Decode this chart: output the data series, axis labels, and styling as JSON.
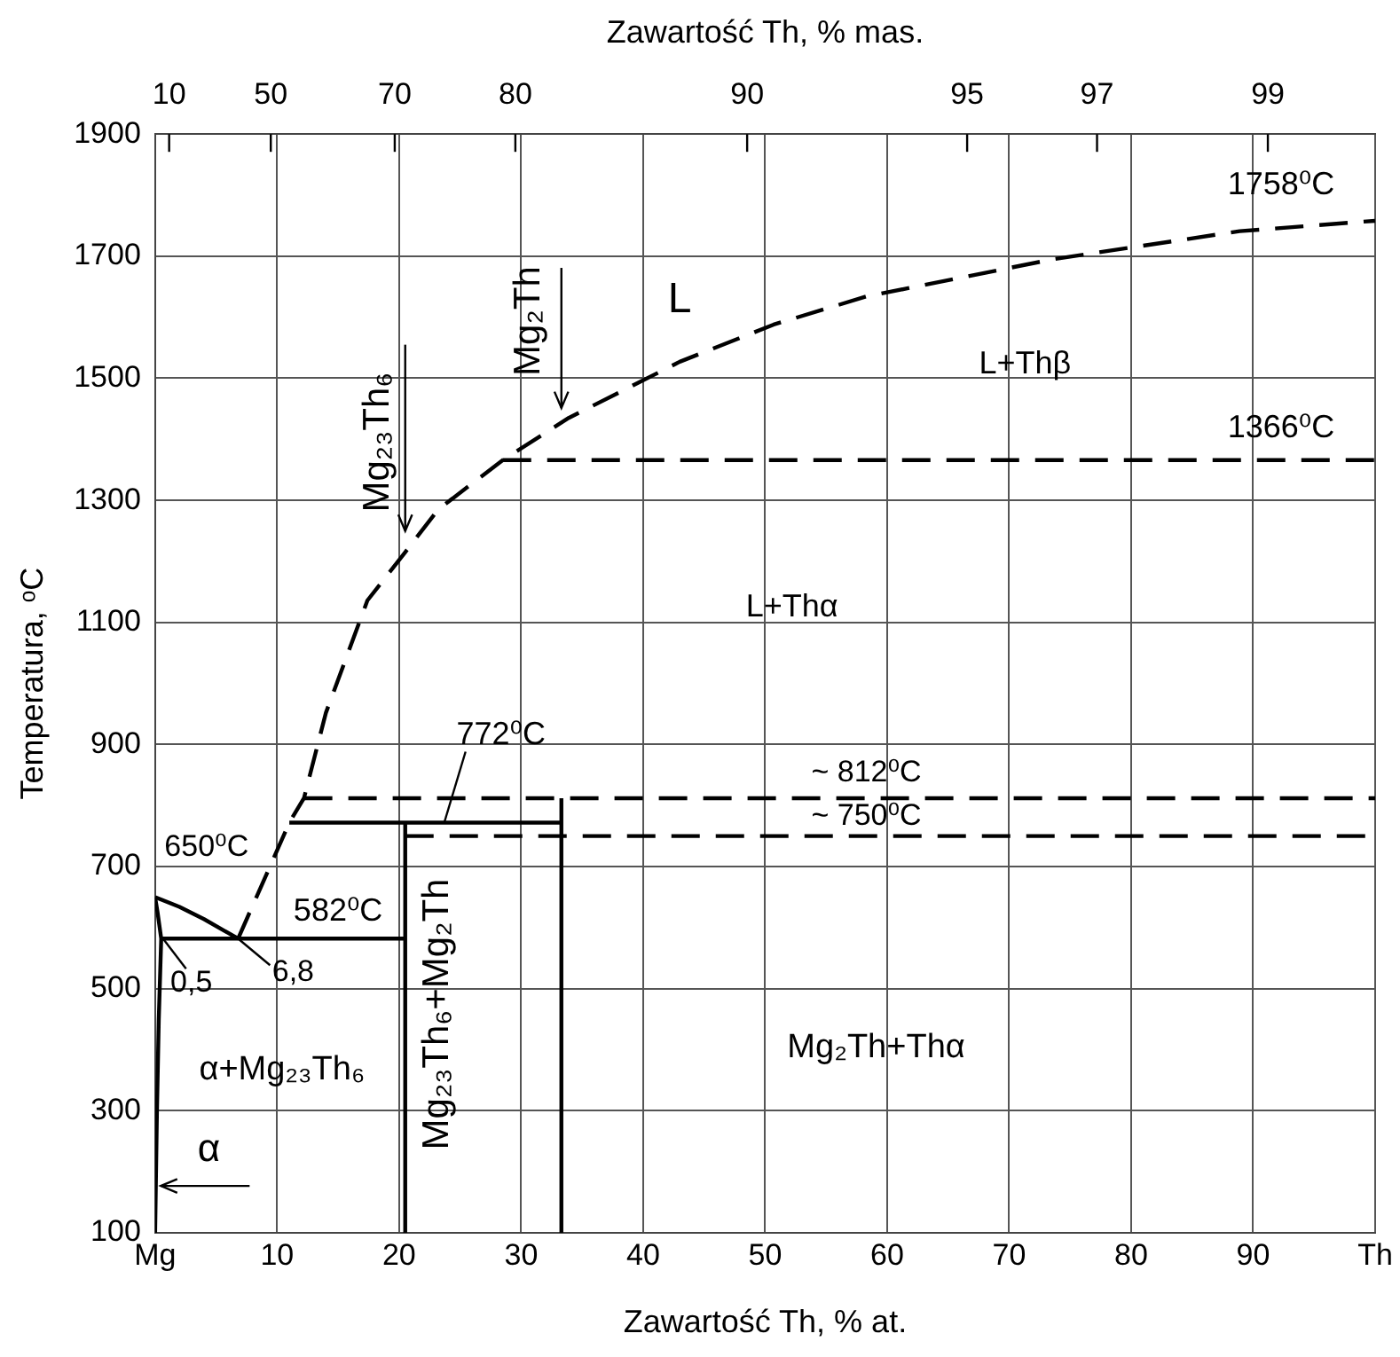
{
  "chart_data": {
    "type": "line",
    "xlabel": "Zawartość Th, % at.",
    "x2label": "Zawartość Th, % mas.",
    "ylabel": "Temperatura, ᵒC",
    "xlim": [
      0,
      100
    ],
    "xticks": [
      {
        "value": 0,
        "label": "Mg"
      },
      10,
      20,
      30,
      40,
      50,
      60,
      70,
      80,
      90,
      {
        "value": 100,
        "label": "Th"
      }
    ],
    "ylim": [
      100,
      1900
    ],
    "yticks": [
      100,
      300,
      500,
      700,
      900,
      1100,
      1300,
      1500,
      1700,
      1900
    ],
    "grid": true,
    "legend": false,
    "marker": "none",
    "series": [
      {
        "color": "#000000",
        "line_style": "dashed",
        "x": [
          6.8,
          11,
          12.2,
          14,
          17.4,
          20.5,
          23.2,
          28.5,
          33.9,
          43,
          50.7,
          58.3,
          73.6,
          88.9,
          100
        ],
        "values": [
          582,
          772,
          812,
          952,
          1136,
          1215,
          1285,
          1366,
          1435,
          1527,
          1588,
          1634,
          1695,
          1741,
          1758
        ]
      },
      {
        "color": "#000000",
        "line_style": "dashed",
        "x": [
          28.5,
          100
        ],
        "values": [
          1366,
          1366
        ]
      },
      {
        "color": "#000000",
        "line_style": "dashed",
        "x": [
          12.2,
          100
        ],
        "values": [
          812,
          812
        ]
      },
      {
        "color": "#000000",
        "line_style": "dashed",
        "x": [
          20.5,
          100
        ],
        "values": [
          750,
          750
        ]
      },
      {
        "color": "#000000",
        "line_style": "solid",
        "x": [
          11,
          33.3
        ],
        "values": [
          772,
          772
        ]
      },
      {
        "color": "#000000",
        "line_style": "solid",
        "x": [
          0.5,
          20.5
        ],
        "values": [
          582,
          582
        ]
      },
      {
        "color": "#000000",
        "line_style": "solid",
        "x": [
          20.5,
          20.5
        ],
        "values": [
          100,
          772
        ]
      },
      {
        "color": "#000000",
        "line_style": "solid",
        "x": [
          33.3,
          33.3
        ],
        "values": [
          100,
          812
        ]
      },
      {
        "color": "#000000",
        "line_style": "solid",
        "x": [
          0,
          2,
          4,
          6.8
        ],
        "values": [
          650,
          634,
          614,
          582
        ]
      },
      {
        "color": "#000000",
        "line_style": "solid",
        "x": [
          0,
          0.2,
          0.5,
          0.3,
          0.15,
          0
        ],
        "values": [
          650,
          625,
          582,
          450,
          300,
          100
        ]
      }
    ],
    "annotations": [
      "L",
      "L+Thβ",
      {
        "text": "1758⁰C",
        "x": 100,
        "y": 1758
      },
      {
        "text": "1366⁰C",
        "x": 100,
        "y": 1366
      },
      "L+Thα",
      {
        "text": "772⁰C",
        "x": 23.7,
        "y": 772
      },
      {
        "text": "~ 812⁰C",
        "x": 58.3,
        "y": 812
      },
      {
        "text": "~ 750⁰C",
        "x": 58.3,
        "y": 750
      },
      {
        "text": "650⁰C",
        "x": 0,
        "y": 650
      },
      {
        "text": "582⁰C",
        "x": 15,
        "y": 582
      },
      {
        "text": "0,5",
        "x": 0.5,
        "y": 582
      },
      {
        "text": "6,8",
        "x": 6.8,
        "y": 582
      },
      "α+Mg₂₃Th₆",
      "α",
      "Mg₂₃Th₆+Mg₂Th",
      "Mg₂Th+Thα",
      {
        "text": "Mg₂₃Th₆",
        "x": 20.5,
        "y": 1215
      },
      {
        "text": "Mg₂Th",
        "x": 33.3,
        "y": 1428
      },
      "10",
      "50",
      "70",
      "80",
      "90",
      "95",
      "97",
      "99"
    ]
  }
}
